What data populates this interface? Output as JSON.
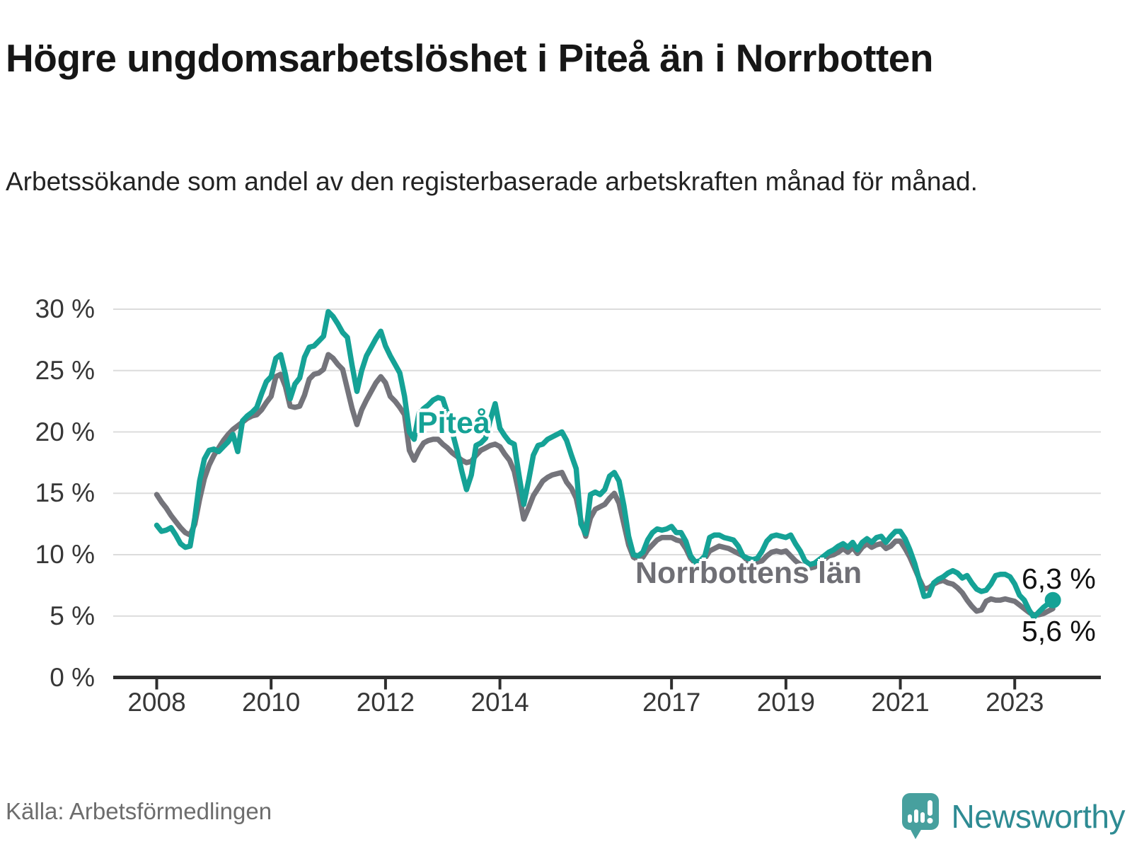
{
  "header": {
    "title": "Högre ungdomsarbetslöshet i Piteå än i Norrbotten",
    "subtitle": "Arbetssökande som andel av den registerbaserade arbetskraften månad för månad."
  },
  "footer": {
    "source": "Källa: Arbetsförmedlingen",
    "brand": "Newsworthy"
  },
  "colors": {
    "pitea_line": "#15a296",
    "norrbotten_line": "#74747b",
    "norrbotten_label": "#6f6f75",
    "axis": "#2e2e2e",
    "gridline": "#dcdcdc",
    "brand_bubble": "#47a09e",
    "brand_text": "#2e8b93"
  },
  "chart_data": {
    "type": "line",
    "title": "Högre ungdomsarbetslöshet i Piteå än i Norrbotten",
    "subtitle": "Arbetssökande som andel av den registerbaserade arbetskraften månad för månad.",
    "unit": "%",
    "x_start_year": 2008,
    "x_step_months": 1,
    "x_end": "2023-09",
    "ylim": [
      0,
      31
    ],
    "grid": "horizontal",
    "legend": "inline-labels",
    "y_ticks": [
      {
        "value": 0,
        "label": "0 %"
      },
      {
        "value": 5,
        "label": "5 %"
      },
      {
        "value": 10,
        "label": "10 %"
      },
      {
        "value": 15,
        "label": "15 %"
      },
      {
        "value": 20,
        "label": "20 %"
      },
      {
        "value": 25,
        "label": "25 %"
      },
      {
        "value": 30,
        "label": "30 %"
      }
    ],
    "x_ticks": [
      {
        "year": 2008,
        "label": "2008"
      },
      {
        "year": 2010,
        "label": "2010"
      },
      {
        "year": 2012,
        "label": "2012"
      },
      {
        "year": 2014,
        "label": "2014"
      },
      {
        "year": 2017,
        "label": "2017"
      },
      {
        "year": 2019,
        "label": "2019"
      },
      {
        "year": 2021,
        "label": "2021"
      },
      {
        "year": 2023,
        "label": "2023"
      }
    ],
    "series": [
      {
        "name": "Norrbottens län",
        "color": "#74747b",
        "end_label": "5,6 %",
        "values": [
          14.9,
          14.3,
          13.8,
          13.2,
          12.7,
          12.2,
          11.8,
          11.6,
          12.5,
          14.5,
          16.2,
          17.3,
          18.1,
          18.7,
          19.3,
          19.8,
          20.2,
          20.5,
          20.8,
          21.1,
          21.3,
          21.4,
          21.8,
          22.4,
          22.9,
          24.5,
          24.7,
          23.7,
          22.1,
          22.0,
          22.1,
          23.0,
          24.3,
          24.7,
          24.8,
          25.1,
          26.3,
          26.0,
          25.5,
          25.1,
          23.5,
          21.9,
          20.6,
          21.8,
          22.6,
          23.3,
          24.0,
          24.5,
          24.0,
          22.9,
          22.5,
          22.0,
          21.4,
          18.5,
          17.7,
          18.5,
          19.1,
          19.3,
          19.4,
          19.4,
          19.0,
          18.7,
          18.3,
          18.0,
          17.7,
          17.5,
          17.6,
          18.1,
          18.5,
          18.7,
          18.9,
          19.0,
          18.8,
          18.2,
          17.7,
          16.8,
          15.0,
          12.9,
          13.8,
          14.8,
          15.4,
          16.0,
          16.3,
          16.5,
          16.6,
          16.7,
          15.9,
          15.4,
          14.6,
          12.8,
          11.5,
          13.0,
          13.7,
          13.9,
          14.1,
          14.6,
          15.0,
          14.2,
          12.5,
          10.8,
          9.8,
          9.6,
          9.8,
          10.4,
          10.8,
          11.2,
          11.4,
          11.4,
          11.4,
          11.2,
          11.1,
          10.5,
          9.7,
          9.3,
          9.4,
          9.7,
          10.3,
          10.5,
          10.7,
          10.6,
          10.5,
          10.3,
          10.1,
          9.9,
          9.5,
          9.3,
          9.4,
          9.5,
          9.9,
          10.2,
          10.3,
          10.2,
          10.3,
          9.9,
          9.5,
          9.2,
          9.0,
          8.9,
          9.0,
          9.3,
          9.6,
          9.9,
          10.0,
          10.2,
          10.5,
          10.2,
          10.6,
          10.1,
          10.6,
          10.9,
          10.6,
          10.8,
          10.9,
          10.5,
          10.7,
          11.1,
          11.1,
          10.5,
          9.8,
          8.9,
          8.0,
          7.2,
          7.3,
          7.6,
          7.8,
          7.9,
          7.7,
          7.6,
          7.3,
          6.9,
          6.3,
          5.8,
          5.4,
          5.5,
          6.2,
          6.4,
          6.3,
          6.3,
          6.4,
          6.3,
          6.2,
          5.9,
          5.6,
          5.3,
          5.1,
          5.1,
          5.2,
          5.4,
          5.6
        ]
      },
      {
        "name": "Piteå",
        "color": "#15a296",
        "end_label": "6,3 %",
        "values": [
          12.4,
          11.9,
          12.0,
          12.2,
          11.6,
          10.9,
          10.6,
          10.7,
          13.0,
          16.0,
          17.8,
          18.5,
          18.6,
          18.4,
          18.8,
          19.2,
          19.8,
          18.4,
          20.9,
          21.3,
          21.6,
          22.0,
          23.1,
          24.1,
          24.5,
          26.0,
          26.3,
          24.7,
          22.7,
          23.9,
          24.4,
          26.1,
          26.9,
          27.0,
          27.4,
          27.8,
          29.8,
          29.4,
          28.8,
          28.1,
          27.7,
          25.4,
          23.3,
          25.0,
          26.2,
          26.9,
          27.6,
          28.2,
          27.0,
          26.2,
          25.5,
          24.8,
          22.9,
          20.0,
          19.4,
          21.5,
          21.9,
          22.2,
          22.6,
          22.8,
          22.7,
          21.5,
          20.0,
          18.5,
          16.8,
          15.3,
          16.5,
          18.9,
          19.1,
          19.5,
          21.0,
          22.3,
          20.3,
          19.7,
          19.2,
          19.0,
          16.5,
          14.1,
          16.0,
          18.1,
          18.9,
          19.0,
          19.4,
          19.6,
          19.8,
          20.0,
          19.3,
          18.1,
          17.0,
          12.5,
          11.7,
          14.9,
          15.1,
          14.9,
          15.3,
          16.4,
          16.7,
          16.0,
          14.0,
          11.5,
          10.0,
          9.9,
          10.2,
          11.2,
          11.8,
          12.1,
          12.0,
          12.1,
          12.3,
          11.8,
          11.8,
          11.1,
          9.9,
          9.4,
          9.5,
          9.9,
          11.4,
          11.6,
          11.6,
          11.4,
          11.3,
          11.2,
          10.7,
          9.9,
          9.7,
          9.6,
          9.7,
          10.3,
          11.1,
          11.5,
          11.6,
          11.5,
          11.4,
          11.6,
          10.9,
          10.3,
          9.5,
          9.2,
          9.3,
          9.6,
          9.9,
          10.2,
          10.4,
          10.7,
          10.9,
          10.6,
          11.0,
          10.4,
          11.0,
          11.3,
          11.0,
          11.4,
          11.5,
          11.0,
          11.5,
          11.9,
          11.9,
          11.3,
          10.4,
          9.3,
          7.9,
          6.6,
          6.7,
          7.7,
          8.0,
          8.2,
          8.5,
          8.7,
          8.5,
          8.1,
          8.3,
          7.7,
          7.2,
          7.0,
          7.1,
          7.6,
          8.3,
          8.4,
          8.4,
          8.2,
          7.6,
          6.7,
          6.3,
          5.5,
          4.9,
          5.3,
          5.7,
          6.0,
          6.3
        ]
      }
    ]
  }
}
